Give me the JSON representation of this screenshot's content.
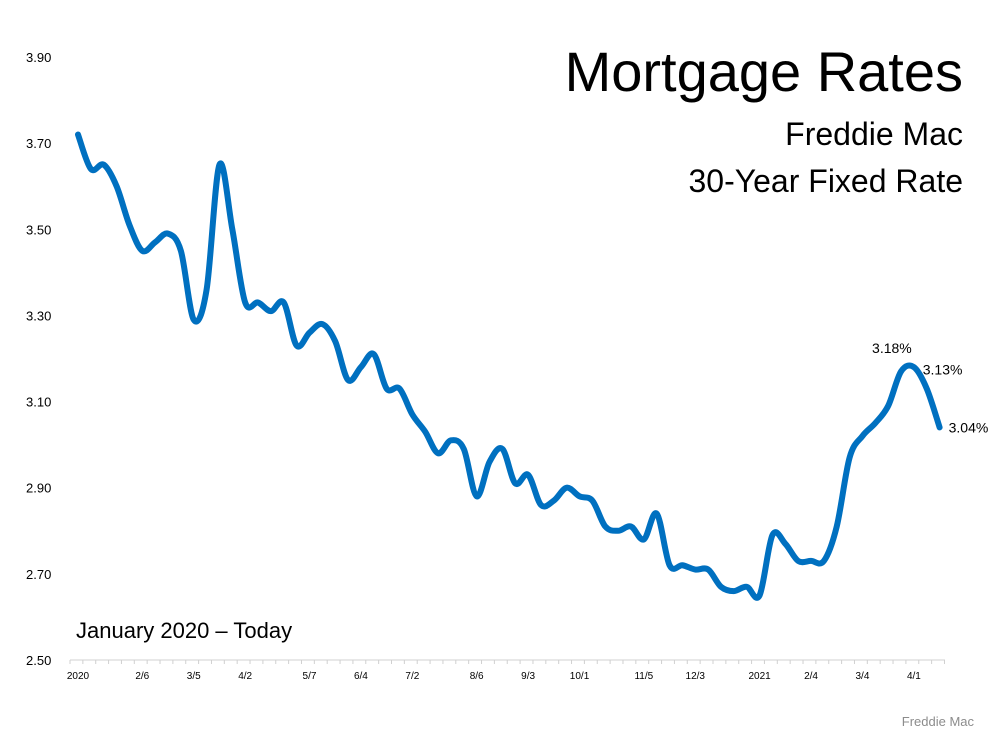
{
  "chart_data": {
    "type": "line",
    "title": "Mortgage Rates",
    "subtitle": [
      "Freddie Mac",
      "30-Year Fixed Rate"
    ],
    "annotation": "January 2020 – Today",
    "source": "Freddie Mac",
    "ylim": [
      2.5,
      3.9
    ],
    "yticks": [
      "2.50",
      "2.70",
      "2.90",
      "3.10",
      "3.30",
      "3.50",
      "3.70",
      "3.90"
    ],
    "grid": false,
    "line_color": "#0070C0",
    "xtick_labels": [
      {
        "index": 0,
        "label": "2020"
      },
      {
        "index": 5,
        "label": "2/6"
      },
      {
        "index": 9,
        "label": "3/5"
      },
      {
        "index": 13,
        "label": "4/2"
      },
      {
        "index": 18,
        "label": "5/7"
      },
      {
        "index": 22,
        "label": "6/4"
      },
      {
        "index": 26,
        "label": "7/2"
      },
      {
        "index": 31,
        "label": "8/6"
      },
      {
        "index": 35,
        "label": "9/3"
      },
      {
        "index": 39,
        "label": "10/1"
      },
      {
        "index": 44,
        "label": "11/5"
      },
      {
        "index": 48,
        "label": "12/3"
      },
      {
        "index": 53,
        "label": "2021"
      },
      {
        "index": 57,
        "label": "2/4"
      },
      {
        "index": 61,
        "label": "3/4"
      },
      {
        "index": 65,
        "label": "4/1"
      }
    ],
    "values": [
      3.72,
      3.64,
      3.65,
      3.6,
      3.51,
      3.45,
      3.47,
      3.49,
      3.45,
      3.29,
      3.36,
      3.65,
      3.5,
      3.33,
      3.33,
      3.31,
      3.33,
      3.23,
      3.26,
      3.28,
      3.24,
      3.15,
      3.18,
      3.21,
      3.13,
      3.13,
      3.07,
      3.03,
      2.98,
      3.01,
      2.99,
      2.88,
      2.96,
      2.99,
      2.91,
      2.93,
      2.86,
      2.87,
      2.9,
      2.88,
      2.87,
      2.81,
      2.8,
      2.81,
      2.78,
      2.84,
      2.72,
      2.72,
      2.71,
      2.71,
      2.67,
      2.66,
      2.67,
      2.65,
      2.79,
      2.77,
      2.73,
      2.73,
      2.73,
      2.81,
      2.97,
      3.02,
      3.05,
      3.09,
      3.17,
      3.18,
      3.13,
      3.04
    ],
    "data_labels": [
      {
        "index": 65,
        "label": "3.18%"
      },
      {
        "index": 66,
        "label": "3.13%"
      },
      {
        "index": 67,
        "label": "3.04%"
      }
    ]
  }
}
